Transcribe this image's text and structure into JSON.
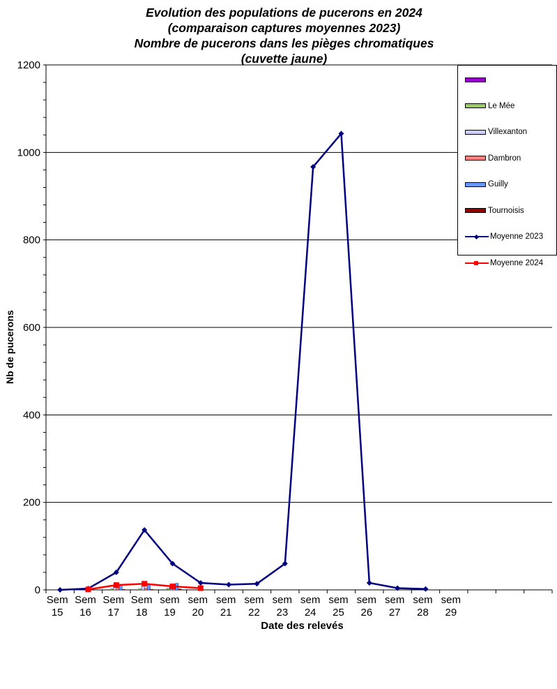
{
  "chart_data": {
    "type": "line",
    "title": [
      "Evolution des populations de pucerons en 2024",
      "(comparaison captures moyennes 2023)",
      "Nombre de pucerons dans les pièges chromatiques",
      "(cuvette jaune)"
    ],
    "xlabel": "Date des relevés",
    "ylabel": "Nb de pucerons",
    "ylim": [
      0,
      1200
    ],
    "yticks": [
      "0",
      "200",
      "400",
      "600",
      "800",
      "1000",
      "1200"
    ],
    "categories": [
      [
        "Sem",
        "15"
      ],
      [
        "Sem",
        "16"
      ],
      [
        "Sem",
        "17"
      ],
      [
        "Sem",
        "18"
      ],
      [
        "sem",
        "19"
      ],
      [
        "sem",
        "20"
      ],
      [
        "sem",
        "21"
      ],
      [
        "sem",
        "22"
      ],
      [
        "sem",
        "23"
      ],
      [
        "sem",
        "24"
      ],
      [
        "sem",
        "25"
      ],
      [
        "sem",
        "26"
      ],
      [
        "sem",
        "27"
      ],
      [
        "sem",
        "28"
      ],
      [
        "sem",
        "29"
      ]
    ],
    "grid": "horizontal",
    "legend_position": "right",
    "bar_series": [
      {
        "name": "",
        "color": "#9900cc",
        "values": [
          null,
          null,
          null,
          null,
          null,
          null,
          null,
          null,
          null,
          null,
          null,
          null,
          null,
          null,
          null
        ]
      },
      {
        "name": "Le Mée",
        "color": "#99cc66",
        "values": [
          null,
          0,
          2,
          2,
          3,
          null,
          null,
          null,
          null,
          null,
          null,
          null,
          null,
          null,
          null
        ]
      },
      {
        "name": "Villexanton",
        "color": "#ccccff",
        "values": [
          null,
          0,
          8,
          9,
          10,
          null,
          null,
          null,
          null,
          null,
          null,
          null,
          null,
          null,
          null
        ]
      },
      {
        "name": "Dambron",
        "color": "#ff8080",
        "values": [
          null,
          0,
          5,
          4,
          6,
          null,
          null,
          null,
          null,
          null,
          null,
          null,
          null,
          null,
          null
        ]
      },
      {
        "name": "Guilly",
        "color": "#6699ff",
        "values": [
          null,
          0,
          10,
          12,
          15,
          null,
          null,
          null,
          null,
          null,
          null,
          null,
          null,
          null,
          null
        ]
      },
      {
        "name": "Tournoisis",
        "color": "#990000",
        "values": [
          null,
          0,
          1,
          1,
          2,
          null,
          null,
          null,
          null,
          null,
          null,
          null,
          null,
          null,
          null
        ]
      }
    ],
    "line_series": [
      {
        "name": "Moyenne 2023",
        "color": "#000080",
        "marker": "diamond",
        "values": [
          0,
          3,
          40,
          137,
          60,
          16,
          12,
          14,
          60,
          967,
          1043,
          16,
          4,
          2,
          null
        ]
      },
      {
        "name": "Moyenne 2024",
        "color": "#ff0000",
        "marker": "square",
        "values": [
          null,
          1,
          11,
          14,
          8,
          4,
          null,
          null,
          null,
          null,
          null,
          null,
          null,
          null,
          null
        ]
      }
    ]
  }
}
